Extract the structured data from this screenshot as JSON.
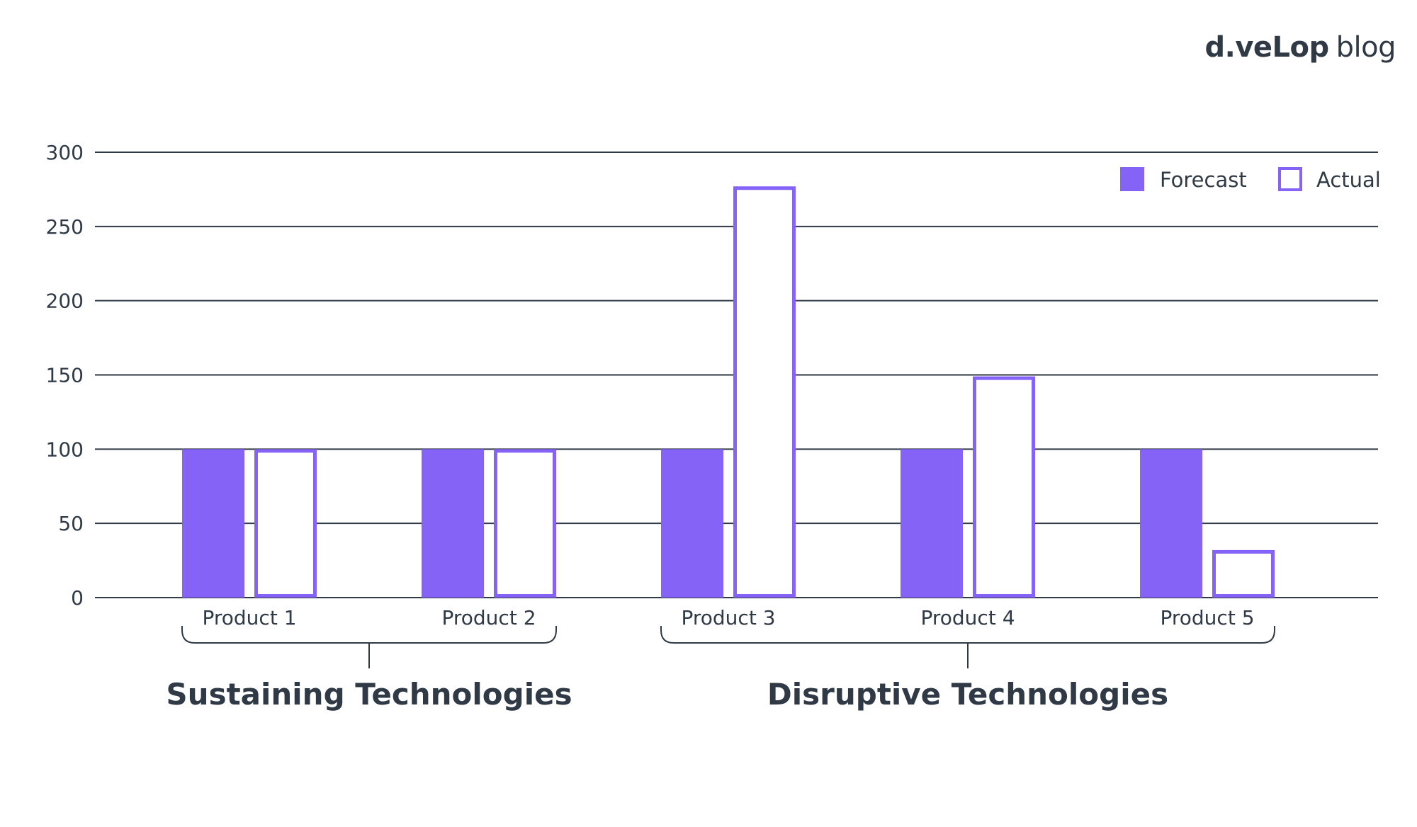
{
  "brand": {
    "name": "d.veLop",
    "suffix": "blog"
  },
  "colors": {
    "accent": "#8463f6",
    "text": "#2f3a46",
    "grid": "#2f3a46"
  },
  "chart_data": {
    "type": "bar",
    "categories": [
      "Product 1",
      "Product 2",
      "Product 3",
      "Product 4",
      "Product 5"
    ],
    "series": [
      {
        "name": "Forecast",
        "style": "filled",
        "values": [
          100,
          100,
          100,
          100,
          100
        ]
      },
      {
        "name": "Actual",
        "style": "outline",
        "values": [
          100,
          100,
          277,
          149,
          32
        ]
      }
    ],
    "groups": [
      {
        "label": "Sustaining Technologies",
        "categories": [
          "Product 1",
          "Product 2"
        ]
      },
      {
        "label": "Disruptive Technologies",
        "categories": [
          "Product 3",
          "Product 4",
          "Product 5"
        ]
      }
    ],
    "yticks": [
      0,
      50,
      100,
      150,
      200,
      250,
      300
    ],
    "ylim": [
      0,
      300
    ],
    "grid": true,
    "legend": "top-right"
  }
}
